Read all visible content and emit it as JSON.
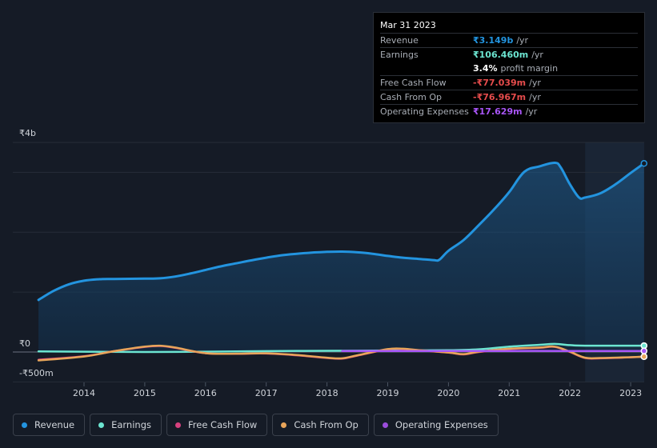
{
  "tooltip": {
    "date": "Mar 31 2023",
    "rows": [
      {
        "label": "Revenue",
        "value": "₹3.149b",
        "unit": "/yr",
        "color": "#2394df"
      },
      {
        "label": "Earnings",
        "value": "₹106.460m",
        "unit": "/yr",
        "color": "#6ce5d1"
      },
      {
        "label": "",
        "value": "3.4%",
        "unit": "profit margin",
        "color": "#ffffff"
      },
      {
        "label": "Free Cash Flow",
        "value": "-₹77.039m",
        "unit": "/yr",
        "color": "#e64c4c"
      },
      {
        "label": "Cash From Op",
        "value": "-₹76.967m",
        "unit": "/yr",
        "color": "#e64c4c"
      },
      {
        "label": "Operating Expenses",
        "value": "₹17.629m",
        "unit": "/yr",
        "color": "#a855f7"
      }
    ]
  },
  "legend": [
    {
      "label": "Revenue",
      "color": "#2394df"
    },
    {
      "label": "Earnings",
      "color": "#6ce5d1"
    },
    {
      "label": "Free Cash Flow",
      "color": "#d6417e"
    },
    {
      "label": "Cash From Op",
      "color": "#e8a55a"
    },
    {
      "label": "Operating Expenses",
      "color": "#9b4ddb"
    }
  ],
  "chart_data": {
    "type": "line",
    "title": "",
    "y_axis_labels": [
      "₹4b",
      "₹0",
      "-₹500m"
    ],
    "ylim": [
      -500,
      3500
    ],
    "units": "₹m",
    "x_ticks": [
      "2014",
      "2015",
      "2016",
      "2017",
      "2018",
      "2019",
      "2020",
      "2021",
      "2022",
      "2023"
    ],
    "highlight_from": 2022.25,
    "series": [
      {
        "name": "Revenue",
        "color": "#2394df",
        "area": true,
        "points": [
          [
            2013.25,
            870
          ],
          [
            2013.5,
            1020
          ],
          [
            2013.75,
            1130
          ],
          [
            2014,
            1190
          ],
          [
            2014.25,
            1215
          ],
          [
            2014.5,
            1220
          ],
          [
            2015,
            1225
          ],
          [
            2015.25,
            1230
          ],
          [
            2015.5,
            1260
          ],
          [
            2015.75,
            1310
          ],
          [
            2016,
            1370
          ],
          [
            2016.25,
            1430
          ],
          [
            2016.5,
            1480
          ],
          [
            2016.75,
            1530
          ],
          [
            2017,
            1575
          ],
          [
            2017.25,
            1615
          ],
          [
            2017.5,
            1640
          ],
          [
            2017.75,
            1660
          ],
          [
            2018,
            1672
          ],
          [
            2018.25,
            1676
          ],
          [
            2018.5,
            1665
          ],
          [
            2018.75,
            1640
          ],
          [
            2019,
            1605
          ],
          [
            2019.25,
            1575
          ],
          [
            2019.5,
            1555
          ],
          [
            2019.75,
            1535
          ],
          [
            2019.85,
            1540
          ],
          [
            2020,
            1690
          ],
          [
            2020.25,
            1870
          ],
          [
            2020.5,
            2120
          ],
          [
            2020.75,
            2380
          ],
          [
            2021,
            2670
          ],
          [
            2021.25,
            3010
          ],
          [
            2021.5,
            3100
          ],
          [
            2021.75,
            3160
          ],
          [
            2021.85,
            3080
          ],
          [
            2022,
            2800
          ],
          [
            2022.15,
            2580
          ],
          [
            2022.25,
            2580
          ],
          [
            2022.5,
            2650
          ],
          [
            2022.75,
            2800
          ],
          [
            2023,
            2990
          ],
          [
            2023.22,
            3149
          ]
        ]
      },
      {
        "name": "Earnings",
        "color": "#6ce5d1",
        "area": false,
        "points": [
          [
            2013.25,
            10
          ],
          [
            2014,
            5
          ],
          [
            2015,
            0
          ],
          [
            2016,
            5
          ],
          [
            2017,
            15
          ],
          [
            2018,
            20
          ],
          [
            2019,
            25
          ],
          [
            2020,
            30
          ],
          [
            2020.5,
            45
          ],
          [
            2021,
            90
          ],
          [
            2021.5,
            120
          ],
          [
            2021.75,
            135
          ],
          [
            2022,
            115
          ],
          [
            2022.25,
            106
          ],
          [
            2023.22,
            106
          ]
        ]
      },
      {
        "name": "Free Cash Flow",
        "color": "#d6417e",
        "area": false,
        "points": [
          [
            2013.25,
            -130
          ],
          [
            2014,
            -70
          ],
          [
            2014.5,
            15
          ],
          [
            2015,
            85
          ],
          [
            2015.25,
            100
          ],
          [
            2015.5,
            70
          ],
          [
            2016,
            -20
          ],
          [
            2016.5,
            -30
          ],
          [
            2017,
            -25
          ],
          [
            2017.5,
            -55
          ],
          [
            2018,
            -100
          ],
          [
            2018.25,
            -110
          ],
          [
            2018.5,
            -60
          ],
          [
            2019,
            45
          ],
          [
            2019.25,
            50
          ],
          [
            2019.5,
            30
          ],
          [
            2020,
            -10
          ],
          [
            2020.25,
            -40
          ],
          [
            2020.5,
            0
          ],
          [
            2021,
            50
          ],
          [
            2021.5,
            70
          ],
          [
            2021.75,
            85
          ],
          [
            2022,
            0
          ],
          [
            2022.25,
            -100
          ],
          [
            2022.5,
            -105
          ],
          [
            2023,
            -88
          ],
          [
            2023.22,
            -77
          ]
        ]
      },
      {
        "name": "Cash From Op",
        "color": "#e8a55a",
        "area": false,
        "points": [
          [
            2013.25,
            -140
          ],
          [
            2014,
            -75
          ],
          [
            2014.5,
            15
          ],
          [
            2015,
            90
          ],
          [
            2015.25,
            105
          ],
          [
            2015.5,
            75
          ],
          [
            2016,
            -20
          ],
          [
            2016.5,
            -28
          ],
          [
            2017,
            -22
          ],
          [
            2017.5,
            -50
          ],
          [
            2018,
            -95
          ],
          [
            2018.25,
            -105
          ],
          [
            2018.5,
            -55
          ],
          [
            2019,
            48
          ],
          [
            2019.25,
            55
          ],
          [
            2019.5,
            32
          ],
          [
            2020,
            -8
          ],
          [
            2020.25,
            -35
          ],
          [
            2020.5,
            5
          ],
          [
            2021,
            55
          ],
          [
            2021.5,
            75
          ],
          [
            2021.75,
            90
          ],
          [
            2022,
            5
          ],
          [
            2022.25,
            -95
          ],
          [
            2022.5,
            -100
          ],
          [
            2023,
            -87
          ],
          [
            2023.22,
            -77
          ]
        ]
      },
      {
        "name": "Operating Expenses",
        "color": "#a855f7",
        "area": false,
        "points": [
          [
            2018.25,
            18
          ],
          [
            2019,
            18
          ],
          [
            2020,
            18
          ],
          [
            2021,
            18
          ],
          [
            2022,
            18
          ],
          [
            2023.22,
            17.6
          ]
        ]
      }
    ]
  }
}
